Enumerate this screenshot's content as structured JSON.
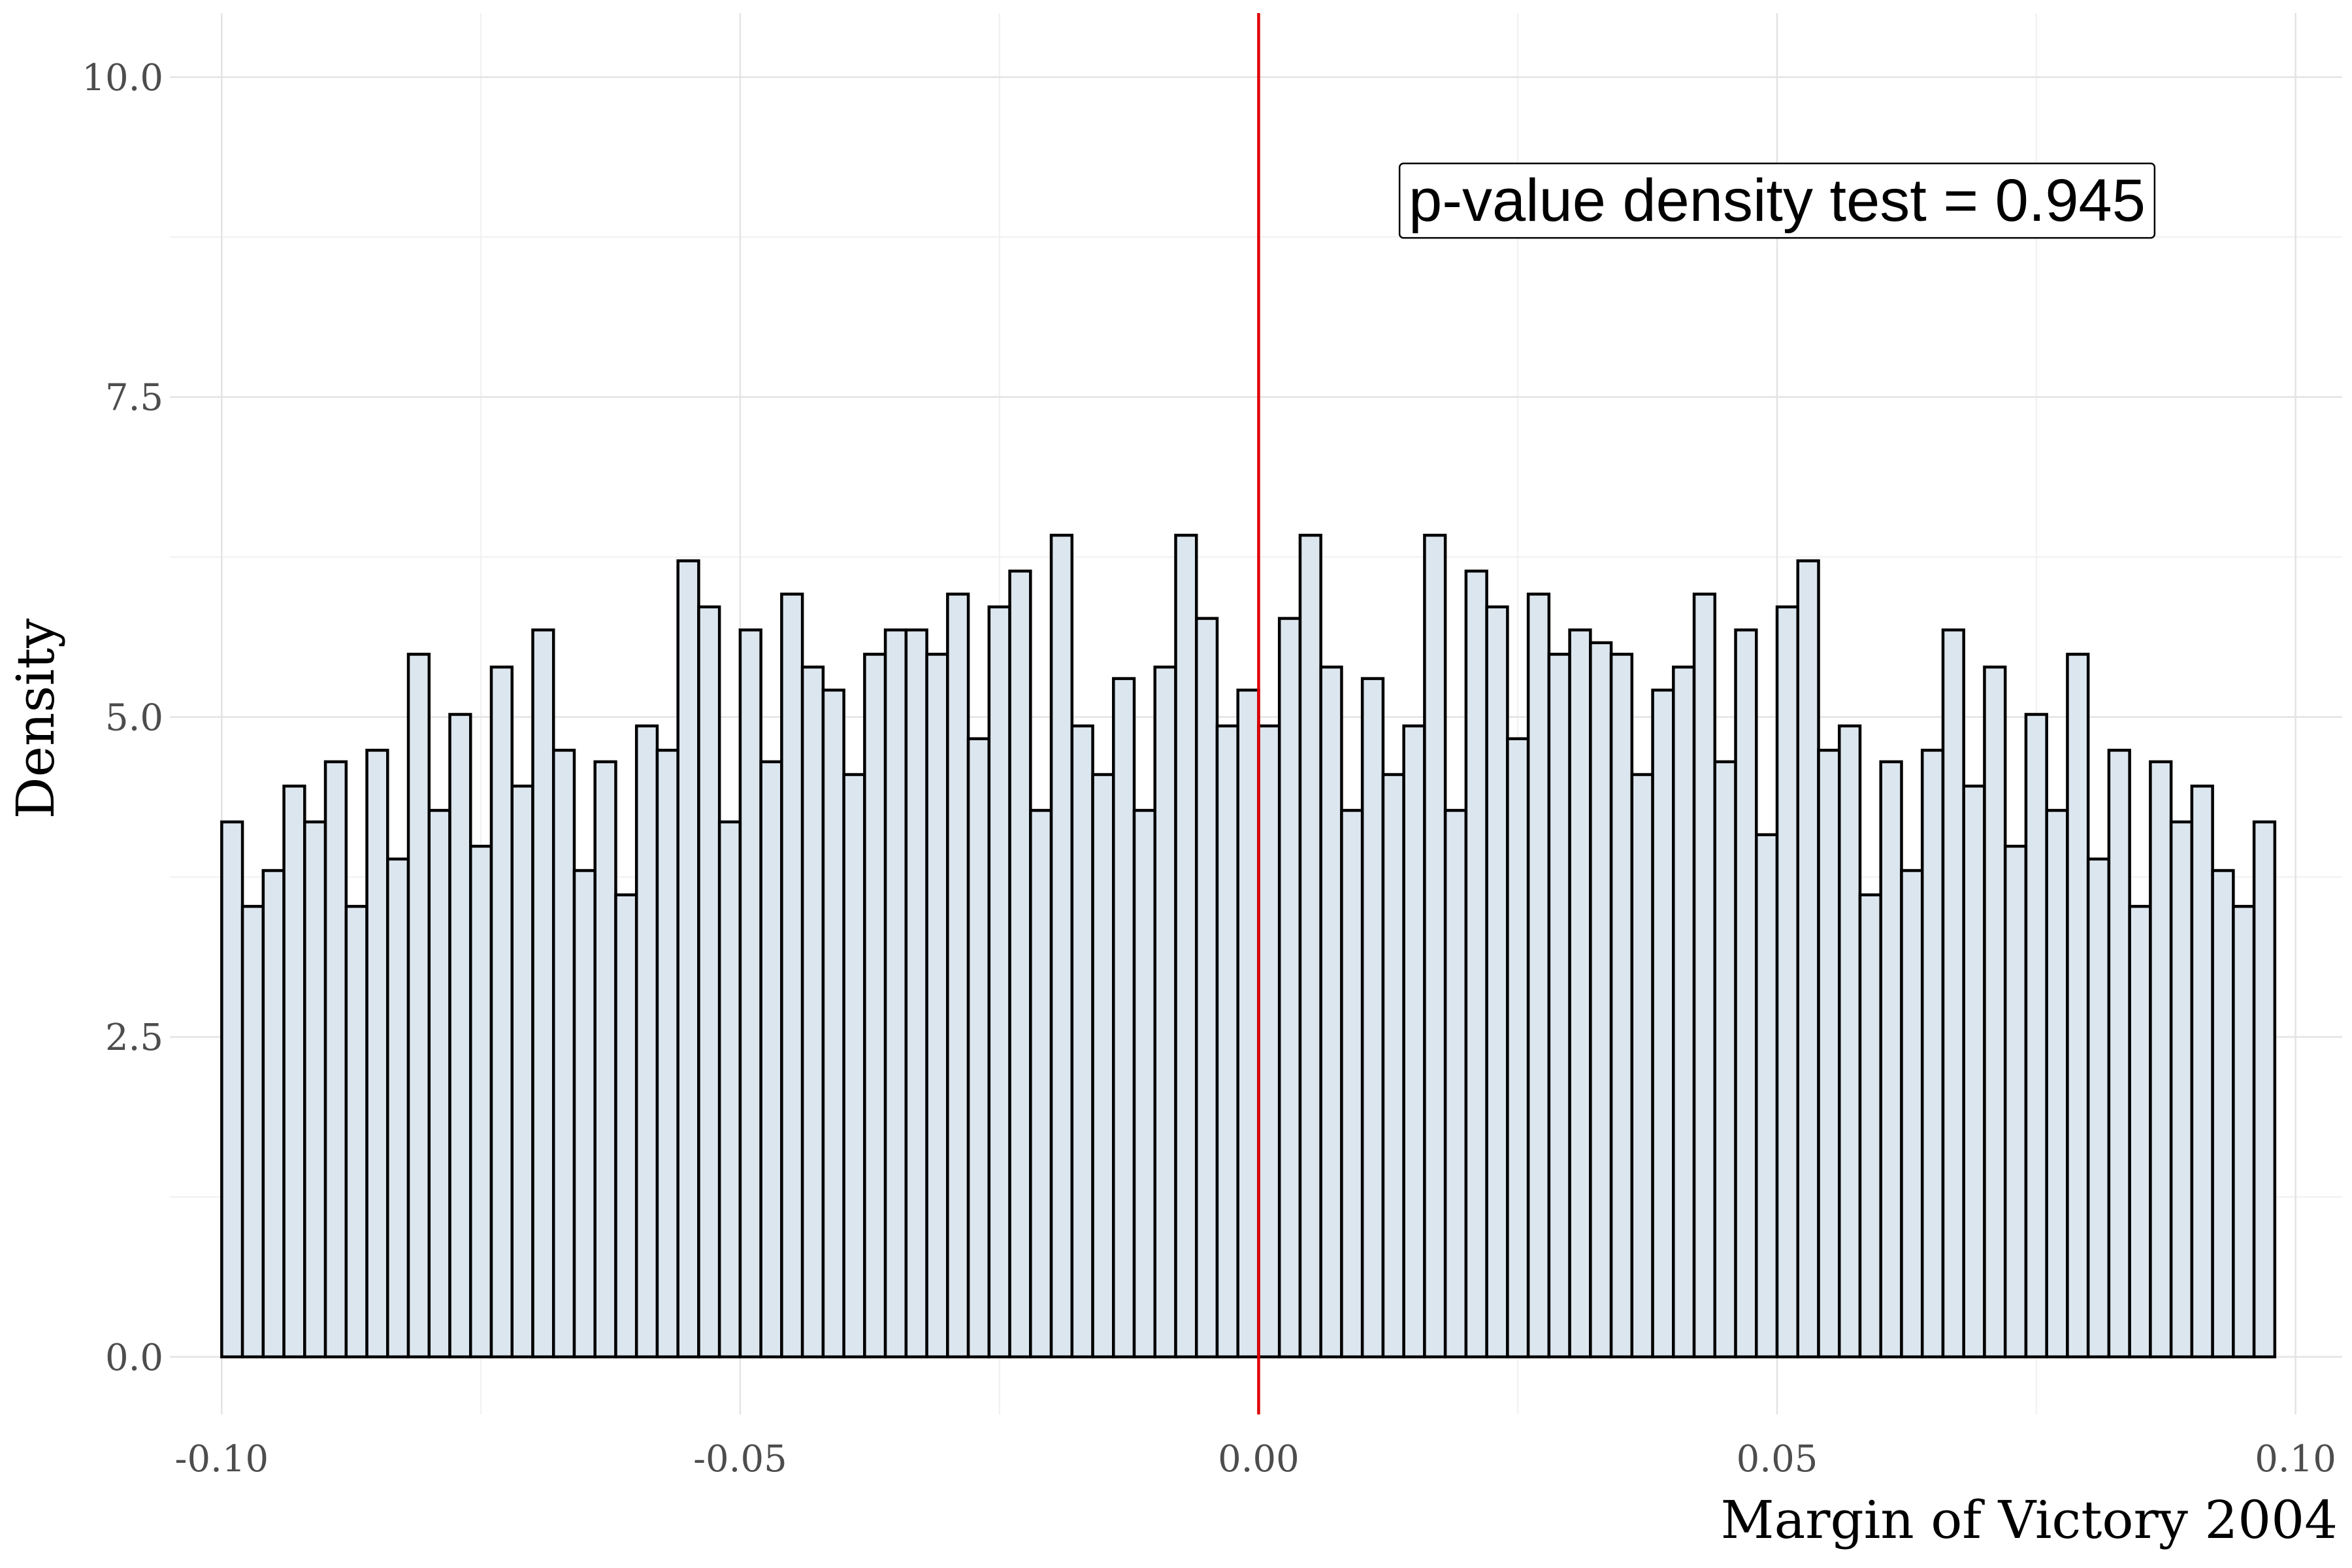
{
  "chart_data": {
    "type": "bar",
    "title": "",
    "xlabel": "Margin of Victory 2004",
    "ylabel": "Density",
    "xlim": [
      -0.105,
      0.1045
    ],
    "ylim": [
      -0.45,
      10.5
    ],
    "bin_width": 0.002,
    "x_ticks": [
      -0.1,
      -0.05,
      0.0,
      0.05,
      0.1
    ],
    "x_tick_labels": [
      "-0.10",
      "-0.05",
      "0.00",
      "0.05",
      "0.10"
    ],
    "y_ticks": [
      0,
      2.5,
      5,
      7.5,
      10
    ],
    "y_tick_labels": [
      "0.0",
      "2.5",
      "5.0",
      "7.5",
      "10.0"
    ],
    "grid": true,
    "bar_fill": "#dce6ef",
    "bar_stroke": "#000000",
    "cutoff_line": {
      "x": 0.0,
      "color": "#e00000"
    },
    "annotation": {
      "text": "p-value density test =  0.945",
      "x": 0.05,
      "y": 9.0
    },
    "values": [
      4.18,
      3.52,
      3.8,
      4.46,
      4.18,
      4.65,
      3.52,
      4.74,
      3.89,
      5.49,
      4.27,
      5.02,
      3.99,
      5.39,
      4.46,
      5.68,
      4.74,
      3.8,
      4.65,
      3.61,
      4.93,
      4.74,
      6.22,
      5.86,
      4.18,
      5.68,
      4.65,
      5.96,
      5.39,
      5.21,
      4.55,
      5.49,
      5.68,
      5.68,
      5.49,
      5.96,
      4.83,
      5.86,
      6.14,
      4.27,
      6.42,
      4.93,
      4.55,
      5.3,
      4.27,
      5.39,
      6.42,
      5.77,
      4.93,
      5.21,
      4.93,
      5.77,
      6.42,
      5.39,
      4.27,
      5.3,
      4.55,
      4.93,
      6.42,
      4.27,
      6.14,
      5.86,
      4.83,
      5.96,
      5.49,
      5.68,
      5.58,
      5.49,
      4.55,
      5.21,
      5.39,
      5.96,
      4.65,
      5.68,
      4.08,
      5.86,
      6.22,
      4.74,
      4.93,
      3.61,
      4.65,
      3.8,
      4.74,
      5.68,
      4.46,
      5.39,
      3.99,
      5.02,
      4.27,
      5.49,
      3.89,
      4.74,
      3.52,
      4.65,
      4.18,
      4.46,
      3.8,
      3.52,
      4.18
    ]
  }
}
